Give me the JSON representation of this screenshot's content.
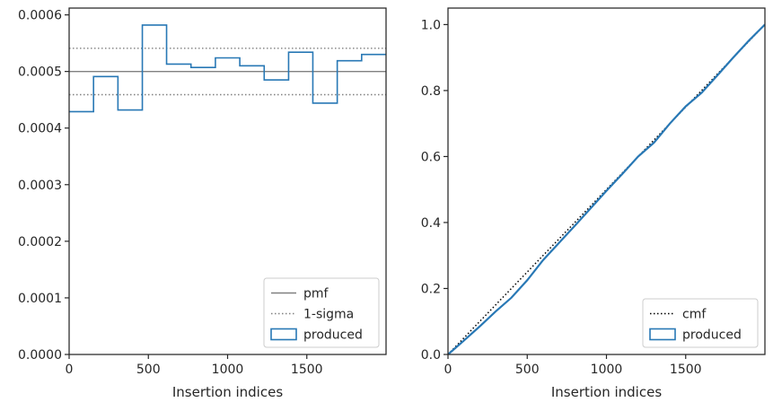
{
  "chart_data": [
    {
      "type": "line",
      "xlabel": "Insertion indices",
      "ylabel": "",
      "xlim": [
        0,
        2000
      ],
      "ylim": [
        0,
        0.000612
      ],
      "xticks": [
        0,
        500,
        1000,
        1500
      ],
      "xtick_labels": [
        "0",
        "500",
        "1000",
        "1500"
      ],
      "yticks": [
        0,
        0.0001,
        0.0002,
        0.0003,
        0.0004,
        0.0005,
        0.0006
      ],
      "ytick_labels": [
        "0.0000",
        "0.0001",
        "0.0002",
        "0.0003",
        "0.0004",
        "0.0005",
        "0.0006"
      ],
      "grid": false,
      "legend_position": "bottom-right",
      "colors": {
        "produced": "#2878b5",
        "reference": "#808080"
      },
      "series": [
        {
          "name": "pmf",
          "style": "solid-horizontal",
          "y": 0.0005
        },
        {
          "name": "1-sigma",
          "style": "dotted-horizontal",
          "y": [
            0.000459,
            0.000541
          ]
        },
        {
          "name": "produced",
          "style": "step-histogram",
          "bin_edges": [
            0,
            154,
            308,
            462,
            615,
            769,
            923,
            1077,
            1231,
            1385,
            1538,
            1692,
            1846,
            2000
          ],
          "values": [
            0.000429,
            0.000491,
            0.000432,
            0.000582,
            0.000513,
            0.000507,
            0.000524,
            0.00051,
            0.000485,
            0.000534,
            0.000444,
            0.000519,
            0.00053
          ]
        }
      ]
    },
    {
      "type": "line",
      "xlabel": "Insertion indices",
      "ylabel": "",
      "xlim": [
        0,
        2000
      ],
      "ylim": [
        0,
        1.05
      ],
      "xticks": [
        0,
        500,
        1000,
        1500
      ],
      "xtick_labels": [
        "0",
        "500",
        "1000",
        "1500"
      ],
      "yticks": [
        0,
        0.2,
        0.4,
        0.6,
        0.8,
        1.0
      ],
      "ytick_labels": [
        "0.0",
        "0.2",
        "0.4",
        "0.6",
        "0.8",
        "1.0"
      ],
      "grid": false,
      "legend_position": "bottom-right",
      "colors": {
        "produced": "#2878b5",
        "cmf": "#000000"
      },
      "series": [
        {
          "name": "cmf",
          "style": "dotted",
          "x": [
            0,
            2000
          ],
          "y": [
            0,
            1.0
          ]
        },
        {
          "name": "produced",
          "style": "step-cumulative",
          "x": [
            0,
            100,
            200,
            300,
            400,
            500,
            600,
            700,
            800,
            900,
            1000,
            1100,
            1200,
            1300,
            1400,
            1500,
            1600,
            1700,
            1800,
            1900,
            2000
          ],
          "y": [
            0,
            0.042,
            0.085,
            0.13,
            0.172,
            0.225,
            0.286,
            0.338,
            0.39,
            0.443,
            0.496,
            0.547,
            0.6,
            0.642,
            0.7,
            0.752,
            0.793,
            0.846,
            0.9,
            0.952,
            1.0
          ]
        }
      ]
    }
  ]
}
